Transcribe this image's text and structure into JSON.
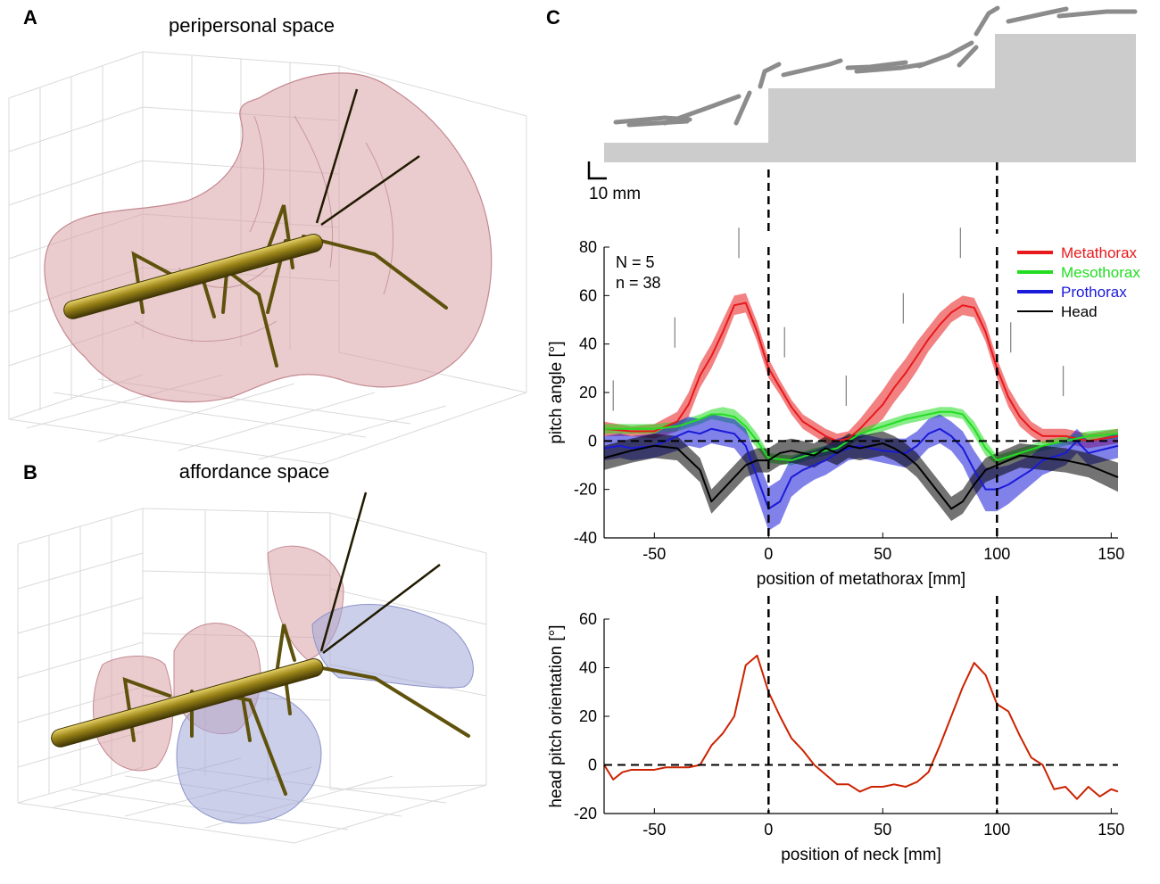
{
  "panels": {
    "A": {
      "letter": "A",
      "title": "peripersonal space"
    },
    "B": {
      "letter": "B",
      "title": "affordance space"
    },
    "C": {
      "letter": "C",
      "scale_bar": "10 mm"
    }
  },
  "colors": {
    "metathorax": "#e8191c",
    "mesothorax": "#22dd22",
    "prothorax": "#1a1ad8",
    "head": "#000000",
    "neck_curve": "#cc2200",
    "stairs": "#cccccc",
    "insect": "#7a6a10",
    "peripersonal": "#d9a3a8",
    "affordance_blue": "#a3a8d9"
  },
  "chart_data": [
    {
      "type": "line",
      "title": "",
      "xlabel": "position of metathorax [mm]",
      "ylabel": "pitch angle [°]",
      "xlim": [
        -72,
        153
      ],
      "ylim": [
        -40,
        80
      ],
      "xticks": [
        -50,
        0,
        50,
        100,
        150
      ],
      "yticks": [
        -40,
        -20,
        0,
        20,
        40,
        60,
        80
      ],
      "annotation": [
        "N = 5",
        "n = 38"
      ],
      "legend_position": "top-right",
      "reference_lines": {
        "x": [
          0,
          100
        ],
        "y": [
          0
        ]
      },
      "step_markers": [
        {
          "x": -68,
          "y": 25
        },
        {
          "x": -41,
          "y": 51
        },
        {
          "x": -13,
          "y": 88
        },
        {
          "x": 7,
          "y": 47
        },
        {
          "x": 34,
          "y": 27
        },
        {
          "x": 59,
          "y": 61
        },
        {
          "x": 84,
          "y": 88
        },
        {
          "x": 106,
          "y": 49
        },
        {
          "x": 129,
          "y": 31
        }
      ],
      "series": [
        {
          "name": "Metathorax",
          "color": "#e8191c",
          "x": [
            -72,
            -60,
            -50,
            -40,
            -35,
            -30,
            -25,
            -20,
            -15,
            -10,
            -5,
            0,
            5,
            10,
            15,
            20,
            25,
            30,
            35,
            40,
            45,
            50,
            55,
            60,
            65,
            70,
            75,
            80,
            85,
            90,
            95,
            100,
            105,
            110,
            115,
            120,
            130,
            140,
            153
          ],
          "y": [
            5,
            4,
            4,
            8,
            15,
            27,
            35,
            45,
            56,
            57,
            45,
            30,
            22,
            14,
            8,
            5,
            2,
            0,
            1,
            5,
            10,
            15,
            22,
            28,
            35,
            42,
            48,
            53,
            56,
            55,
            45,
            30,
            18,
            10,
            5,
            2,
            2,
            0,
            2
          ],
          "err": [
            3,
            2,
            3,
            4,
            5,
            5,
            5,
            5,
            4,
            4,
            4,
            4,
            3,
            3,
            3,
            3,
            3,
            3,
            3,
            4,
            5,
            6,
            6,
            6,
            6,
            5,
            5,
            4,
            4,
            4,
            4,
            4,
            4,
            4,
            3,
            3,
            3,
            3,
            3
          ]
        },
        {
          "name": "Mesothorax",
          "color": "#22dd22",
          "x": [
            -72,
            -60,
            -50,
            -40,
            -30,
            -25,
            -20,
            -15,
            -10,
            -5,
            0,
            10,
            20,
            30,
            35,
            40,
            50,
            60,
            70,
            75,
            80,
            85,
            90,
            95,
            100,
            110,
            120,
            130,
            140,
            153
          ],
          "y": [
            5,
            5,
            5,
            6,
            9,
            11,
            11,
            10,
            6,
            0,
            -7,
            -8,
            -5,
            -3,
            0,
            3,
            6,
            9,
            11,
            12,
            12,
            11,
            5,
            -3,
            -8,
            -5,
            -2,
            0,
            2,
            3
          ],
          "err": [
            2,
            2,
            2,
            2,
            2,
            2,
            3,
            3,
            3,
            3,
            2,
            2,
            2,
            2,
            2,
            2,
            2,
            2,
            2,
            2,
            2,
            2,
            3,
            3,
            2,
            2,
            2,
            2,
            2,
            2
          ]
        },
        {
          "name": "Prothorax",
          "color": "#1a1ad8",
          "x": [
            -72,
            -65,
            -60,
            -50,
            -40,
            -35,
            -30,
            -25,
            -20,
            -15,
            -10,
            -5,
            0,
            5,
            10,
            15,
            20,
            25,
            30,
            35,
            40,
            50,
            60,
            65,
            70,
            75,
            80,
            85,
            90,
            95,
            100,
            105,
            110,
            115,
            120,
            130,
            135,
            140,
            153
          ],
          "y": [
            -3,
            -2,
            -3,
            -2,
            2,
            4,
            3,
            5,
            4,
            3,
            -2,
            -15,
            -28,
            -25,
            -15,
            -12,
            -10,
            -8,
            -5,
            -3,
            -2,
            -4,
            -5,
            -2,
            3,
            5,
            2,
            -3,
            -12,
            -20,
            -20,
            -18,
            -15,
            -12,
            -8,
            -5,
            0,
            -5,
            -2
          ],
          "err": [
            5,
            5,
            5,
            5,
            6,
            6,
            6,
            6,
            6,
            6,
            7,
            8,
            9,
            9,
            8,
            7,
            6,
            6,
            6,
            5,
            5,
            5,
            6,
            6,
            6,
            6,
            6,
            7,
            8,
            9,
            9,
            8,
            7,
            6,
            6,
            5,
            5,
            5,
            5
          ]
        },
        {
          "name": "Head",
          "color": "#000000",
          "x": [
            -72,
            -60,
            -50,
            -40,
            -30,
            -25,
            -20,
            -15,
            -10,
            -5,
            0,
            5,
            10,
            15,
            20,
            25,
            30,
            35,
            40,
            45,
            50,
            55,
            60,
            65,
            70,
            75,
            80,
            85,
            90,
            95,
            100,
            105,
            110,
            120,
            130,
            140,
            153
          ],
          "y": [
            -7,
            -4,
            -2,
            -3,
            -12,
            -25,
            -20,
            -15,
            -10,
            -8,
            -8,
            -5,
            -4,
            -5,
            -6,
            -3,
            -5,
            -2,
            -3,
            -2,
            -1,
            -3,
            -6,
            -10,
            -16,
            -22,
            -28,
            -25,
            -18,
            -12,
            -10,
            -8,
            -6,
            -7,
            -8,
            -10,
            -15
          ],
          "err": [
            5,
            5,
            5,
            5,
            5,
            5,
            5,
            5,
            5,
            5,
            5,
            5,
            5,
            5,
            5,
            5,
            5,
            5,
            5,
            5,
            5,
            5,
            5,
            5,
            5,
            5,
            5,
            5,
            5,
            5,
            5,
            5,
            5,
            5,
            5,
            5,
            6
          ]
        }
      ]
    },
    {
      "type": "line",
      "title": "",
      "xlabel": "position of neck [mm]",
      "ylabel": "head pitch orientation [°]",
      "xlim": [
        -72,
        153
      ],
      "ylim": [
        -20,
        60
      ],
      "xticks": [
        -50,
        0,
        50,
        100,
        150
      ],
      "yticks": [
        -20,
        0,
        20,
        40,
        60
      ],
      "reference_lines": {
        "x": [
          0,
          100
        ],
        "y": [
          0
        ]
      },
      "series": [
        {
          "name": "head pitch",
          "color": "#cc2200",
          "x": [
            -72,
            -68,
            -64,
            -60,
            -55,
            -50,
            -45,
            -40,
            -35,
            -30,
            -25,
            -20,
            -15,
            -10,
            -5,
            0,
            5,
            10,
            15,
            20,
            25,
            30,
            35,
            40,
            45,
            50,
            55,
            60,
            65,
            70,
            75,
            80,
            85,
            90,
            95,
            100,
            105,
            110,
            115,
            120,
            125,
            130,
            135,
            140,
            145,
            150,
            153
          ],
          "y": [
            0,
            -6,
            -3,
            -2,
            -2,
            -2,
            -1,
            -1,
            -1,
            0,
            8,
            13,
            20,
            41,
            45,
            30,
            20,
            11,
            6,
            0,
            -4,
            -8,
            -8,
            -11,
            -9,
            -9,
            -8,
            -9,
            -7,
            -3,
            8,
            20,
            32,
            42,
            37,
            25,
            22,
            12,
            3,
            0,
            -10,
            -9,
            -14,
            -9,
            -13,
            -10,
            -11
          ]
        }
      ]
    }
  ]
}
